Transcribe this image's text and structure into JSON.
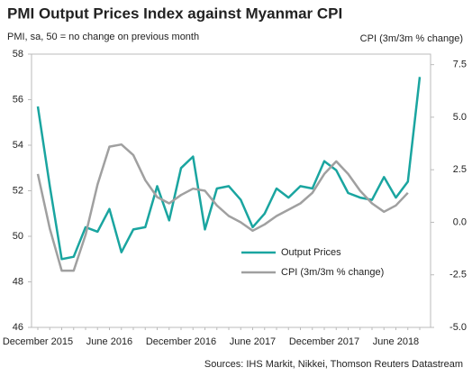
{
  "chart_data": {
    "type": "line",
    "title": "PMI Output Prices Index against Myanmar CPI",
    "subtitle": "PMI, sa, 50 = no change on previous month",
    "y2_label": "CPI (3m/3m % change)",
    "source": "Sources: IHS Markit, Nikkei, Thomson Reuters Datastream",
    "categories": [
      "December 2015",
      null,
      null,
      null,
      null,
      null,
      "June 2016",
      null,
      null,
      null,
      null,
      null,
      "December 2016",
      null,
      null,
      null,
      null,
      null,
      "June 2017",
      null,
      null,
      null,
      null,
      null,
      "December 2017",
      null,
      null,
      null,
      null,
      null,
      "June 2018",
      null,
      null
    ],
    "series": [
      {
        "name": "Output Prices",
        "color": "#1aa5a0",
        "axis": "y",
        "values": [
          55.7,
          52.2,
          49.0,
          49.1,
          50.4,
          50.2,
          51.2,
          49.3,
          50.3,
          50.4,
          52.2,
          50.7,
          53.0,
          53.5,
          50.3,
          52.1,
          52.2,
          51.6,
          50.4,
          51.0,
          52.1,
          51.7,
          52.2,
          52.1,
          53.3,
          52.9,
          51.9,
          51.7,
          51.6,
          52.6,
          51.7,
          52.4,
          57.0
        ]
      },
      {
        "name": "CPI (3m/3m % change)",
        "color": "#a0a0a0",
        "axis": "y2",
        "values": [
          2.3,
          -0.3,
          -2.3,
          -2.3,
          -0.6,
          1.8,
          3.6,
          3.7,
          3.2,
          2.0,
          1.2,
          0.9,
          1.3,
          1.6,
          1.5,
          0.8,
          0.3,
          0.0,
          -0.4,
          -0.1,
          0.3,
          0.6,
          0.9,
          1.4,
          2.3,
          2.9,
          2.3,
          1.5,
          0.9,
          0.5,
          0.8,
          1.4,
          null
        ]
      }
    ],
    "ylim": [
      46,
      58
    ],
    "yticks": [
      46,
      48,
      50,
      52,
      54,
      56,
      58
    ],
    "y2lim": [
      -5,
      8
    ],
    "y2ticks": [
      {
        "value": -5,
        "label": "-5.0"
      },
      -2.5,
      {
        "value": 0,
        "label": "0.0"
      },
      2.5,
      {
        "value": 5,
        "label": "5.0"
      },
      7.5
    ],
    "grid": false,
    "legend": "bottom"
  }
}
